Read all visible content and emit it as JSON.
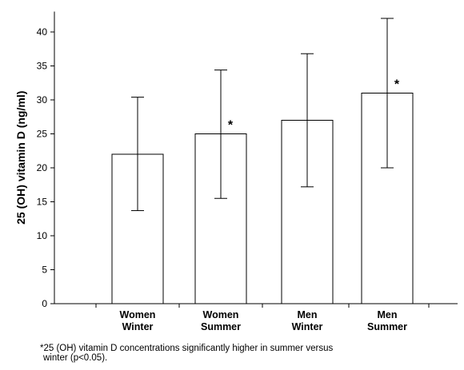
{
  "chart_data": {
    "type": "bar",
    "ylabel": "25 (OH) vitamin D (ng/ml)",
    "xlabel": "",
    "ylim": [
      0,
      43
    ],
    "yticks": [
      0,
      5,
      10,
      15,
      20,
      25,
      30,
      35,
      40
    ],
    "categories": [
      [
        "Women",
        "Winter"
      ],
      [
        "Women",
        "Summer"
      ],
      [
        "Men",
        "Winter"
      ],
      [
        "Men",
        "Summer"
      ]
    ],
    "values": [
      22,
      25,
      27,
      31
    ],
    "error_low": [
      13.7,
      15.5,
      17.2,
      20
    ],
    "error_high": [
      30.4,
      34.4,
      36.8,
      42
    ],
    "markers": [
      "",
      "*",
      "",
      "*"
    ],
    "bar_fill": "#ffffff",
    "bar_stroke": "#000000",
    "grid": false
  },
  "footnote": {
    "lines": [
      "*25 (OH) vitamin D concentrations significantly higher in summer versus",
      "winter (p<0.05)."
    ]
  }
}
